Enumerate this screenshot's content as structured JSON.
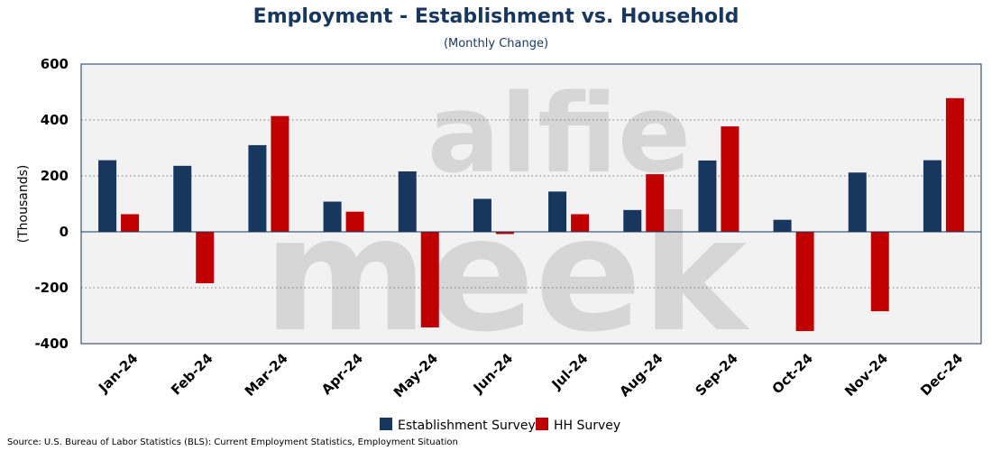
{
  "title": "Employment - Establishment vs. Household",
  "subtitle": "(Monthly Change)",
  "source": "Source: U.S. Bureau of Labor Statistics (BLS): Current Employment Statistics, Employment Situation",
  "watermark": [
    "alfie",
    "meek"
  ],
  "chart_data": {
    "type": "bar",
    "title": "Employment - Establishment vs. Household",
    "subtitle": "(Monthly Change)",
    "xlabel": "",
    "ylabel": "(Thousands)",
    "ylim": [
      -400,
      600
    ],
    "yticks": [
      -400,
      -200,
      0,
      200,
      400,
      600
    ],
    "grid": true,
    "legend": "bottom",
    "categories": [
      "Jan-24",
      "Feb-24",
      "Mar-24",
      "Apr-24",
      "May-24",
      "Jun-24",
      "Jul-24",
      "Aug-24",
      "Sep-24",
      "Oct-24",
      "Nov-24",
      "Dec-24"
    ],
    "series": [
      {
        "name": "Establishment Survey",
        "color": "#17375e",
        "values": [
          256,
          236,
          310,
          108,
          216,
          118,
          144,
          78,
          255,
          43,
          212,
          256
        ]
      },
      {
        "name": "HH Survey",
        "color": "#c00000",
        "values": [
          63,
          -184,
          414,
          72,
          -342,
          -8,
          63,
          206,
          377,
          -355,
          -284,
          478
        ]
      }
    ]
  }
}
